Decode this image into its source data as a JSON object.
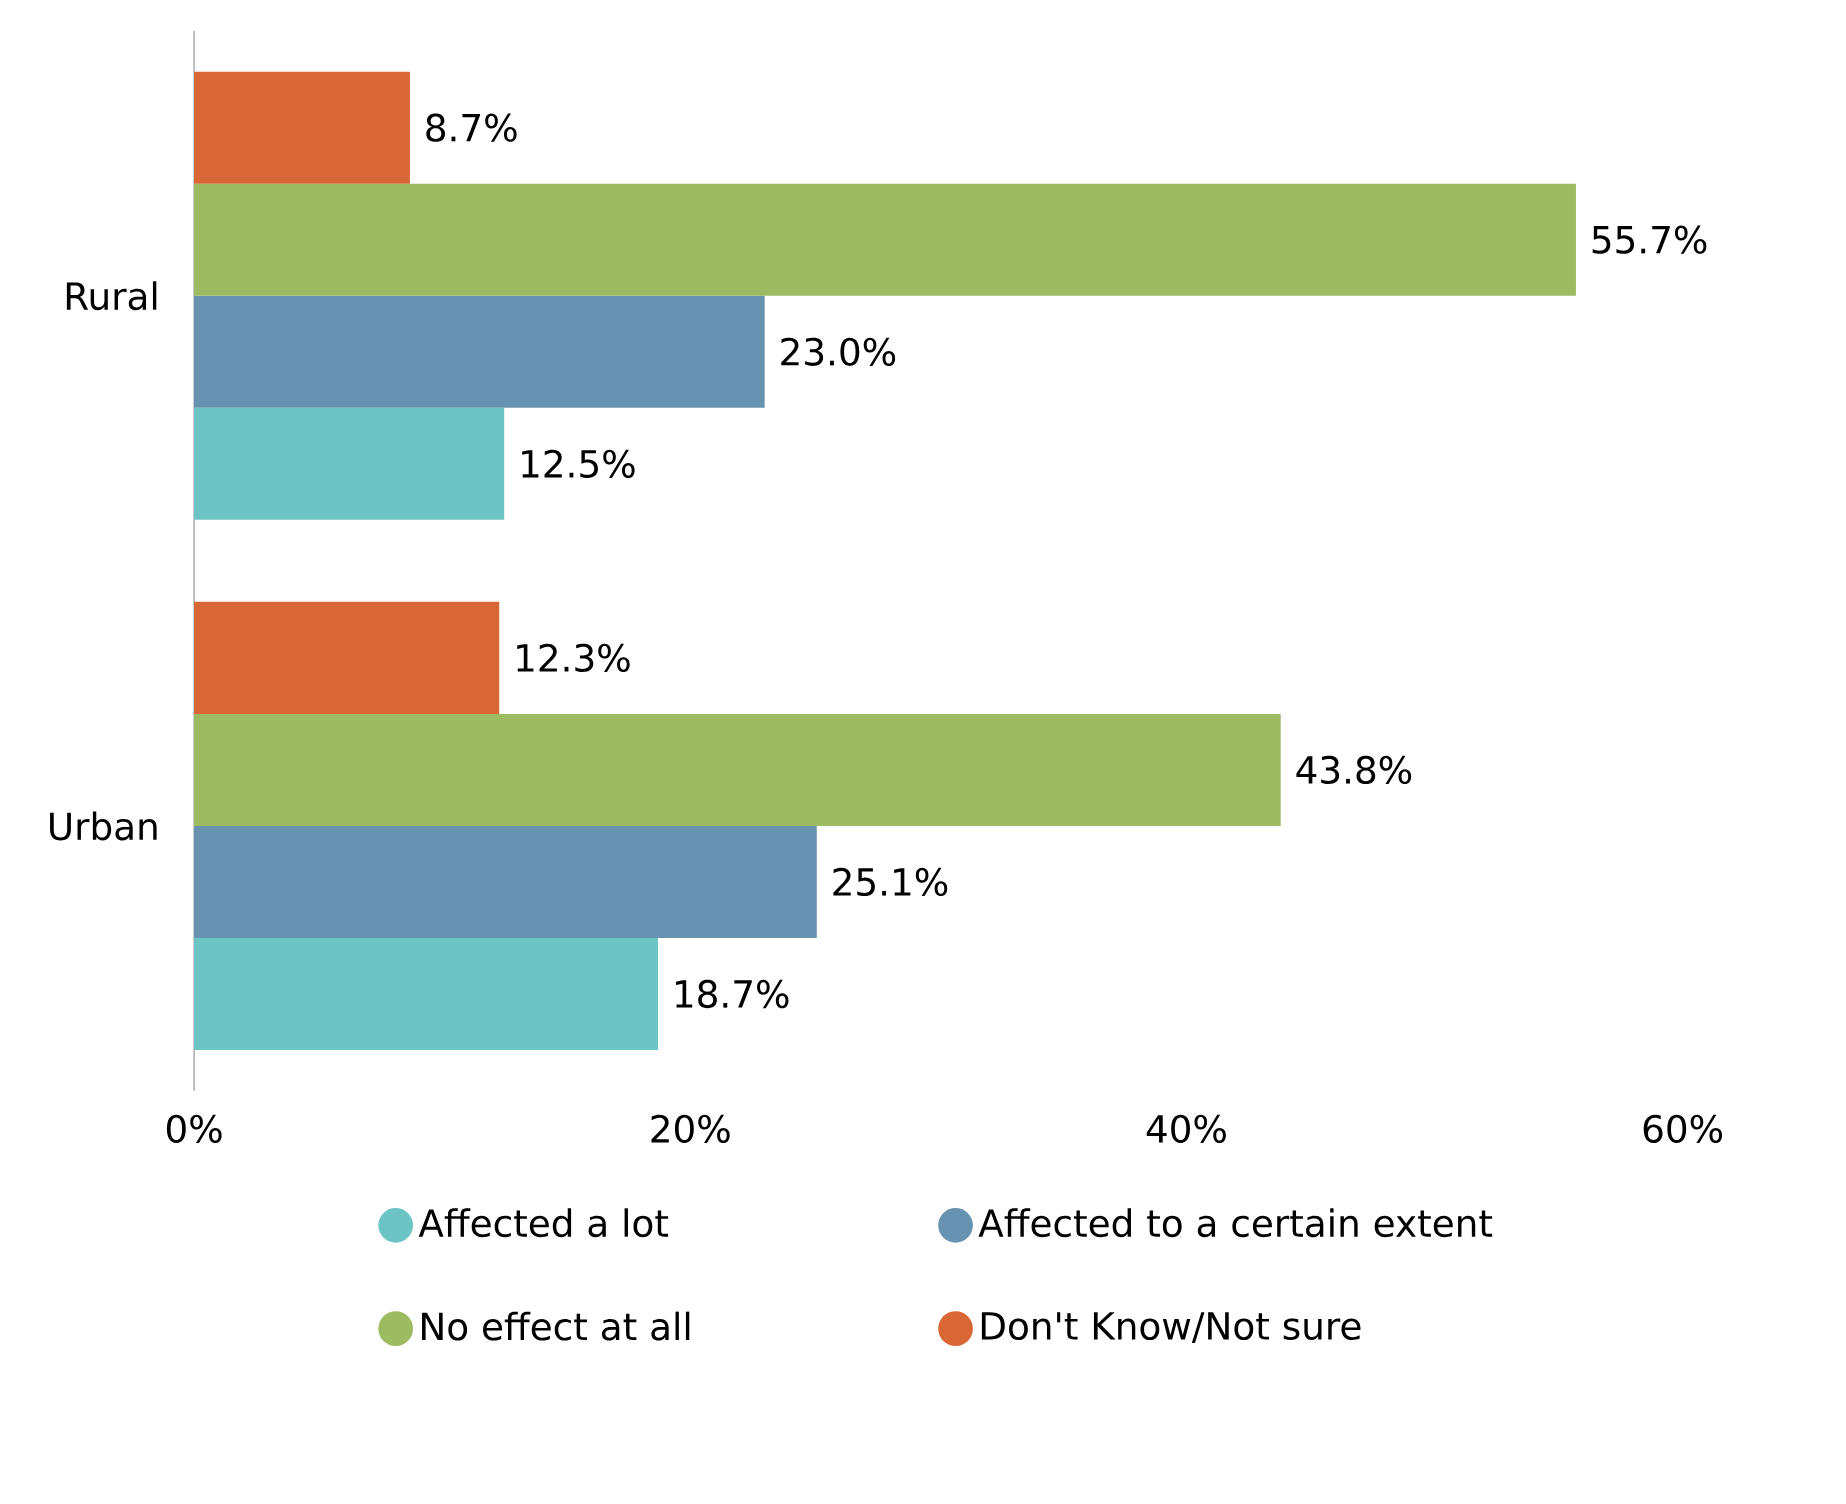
{
  "chart_data": {
    "type": "bar",
    "orientation": "horizontal",
    "categories": [
      "Rural",
      "Urban"
    ],
    "series": [
      {
        "name": "Affected a lot",
        "color": "#6cc5c4",
        "values": [
          12.5,
          18.7
        ],
        "value_labels": [
          "12.5%",
          "18.7%"
        ]
      },
      {
        "name": "Affected to a certain extent",
        "color": "#6793b0",
        "values": [
          23.0,
          25.1
        ],
        "value_labels": [
          "23.0%",
          "25.1%"
        ]
      },
      {
        "name": "No effect at all",
        "color": "#9dbb61",
        "values": [
          55.7,
          43.8
        ],
        "value_labels": [
          "55.7%",
          "43.8%"
        ]
      },
      {
        "name": "Don't Know/Not sure",
        "color": "#d96635",
        "values": [
          8.7,
          12.3
        ],
        "value_labels": [
          "8.7%",
          "12.3%"
        ]
      }
    ],
    "xlim": [
      0,
      60
    ],
    "xticks": [
      {
        "value": 0,
        "label": "0%"
      },
      {
        "value": 20,
        "label": "20%"
      },
      {
        "value": 40,
        "label": "40%"
      },
      {
        "value": 60,
        "label": "60%"
      }
    ],
    "grid": false,
    "legend": "bottom"
  }
}
